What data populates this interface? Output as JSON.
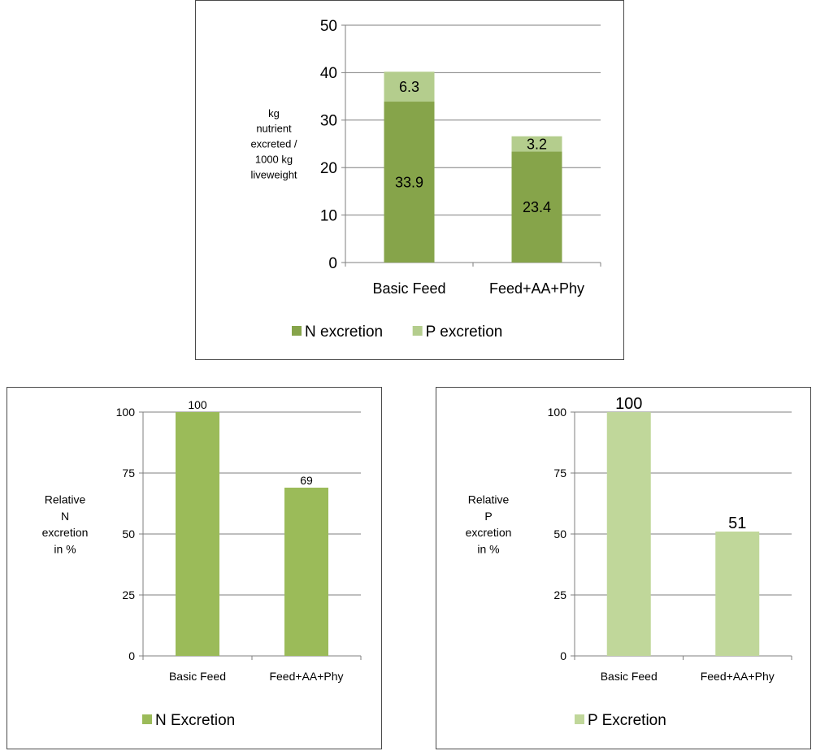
{
  "colors": {
    "n": "#86a44a",
    "p": "#b4cd8d",
    "n_small": "#9bbb59",
    "p_small": "#c0d79a",
    "grid": "#7f7f7f"
  },
  "chart_data": [
    {
      "type": "bar",
      "stacked": true,
      "categories": [
        "Basic Feed",
        "Feed+AA+Phy"
      ],
      "series": [
        {
          "name": "N excretion",
          "values": [
            33.9,
            23.4
          ]
        },
        {
          "name": "P excretion",
          "values": [
            6.3,
            3.2
          ]
        }
      ],
      "ylabel": "kg nutrient excreted / 1000 kg liveweight",
      "ylabel_lines": [
        "kg",
        "nutrient",
        "excreted /",
        "1000 kg",
        "liveweight"
      ],
      "ylim": [
        0,
        50
      ],
      "yticks": [
        0,
        10,
        20,
        30,
        40,
        50
      ],
      "grid": true,
      "legend": "bottom"
    },
    {
      "type": "bar",
      "categories": [
        "Basic Feed",
        "Feed+AA+Phy"
      ],
      "series": [
        {
          "name": "N Excretion",
          "values": [
            100,
            69
          ]
        }
      ],
      "ylabel": "Relative N excretion in %",
      "ylabel_lines": [
        "Relative",
        "N",
        "excretion",
        "in %"
      ],
      "ylim": [
        0,
        100
      ],
      "yticks": [
        0,
        25,
        50,
        75,
        100
      ],
      "grid": true,
      "legend": "bottom"
    },
    {
      "type": "bar",
      "categories": [
        "Basic Feed",
        "Feed+AA+Phy"
      ],
      "series": [
        {
          "name": "P Excretion",
          "values": [
            100,
            51
          ]
        }
      ],
      "ylabel": "Relative P excretion in %",
      "ylabel_lines": [
        "Relative",
        "P",
        "excretion",
        "in %"
      ],
      "ylim": [
        0,
        100
      ],
      "yticks": [
        0,
        25,
        50,
        75,
        100
      ],
      "grid": true,
      "legend": "bottom"
    }
  ]
}
